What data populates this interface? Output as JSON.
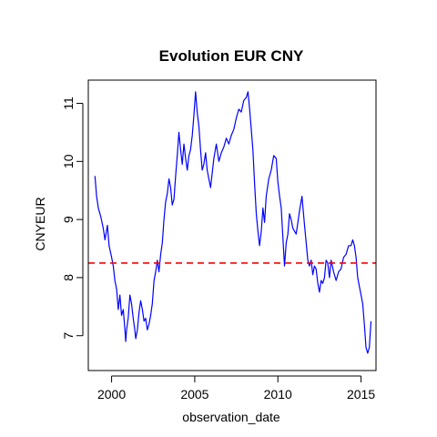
{
  "chart_data": {
    "type": "line",
    "title": "Evolution EUR CNY",
    "xlabel": "observation_date",
    "ylabel": "CNYEUR",
    "xlim": [
      1998.6,
      2015.9
    ],
    "ylim": [
      6.4,
      11.4
    ],
    "x_ticks": [
      2000,
      2005,
      2010,
      2015
    ],
    "y_ticks": [
      7,
      8,
      9,
      10,
      11
    ],
    "x_tick_labels": [
      "2000",
      "2005",
      "2010",
      "2015"
    ],
    "y_tick_labels": [
      "7",
      "8",
      "9",
      "10",
      "11"
    ],
    "grid": false,
    "legend": "none",
    "series": [
      {
        "color": "#0000ff",
        "x": [
          1999.0,
          1999.1,
          1999.2,
          1999.35,
          1999.5,
          1999.6,
          1999.75,
          1999.85,
          2000.0,
          2000.1,
          2000.2,
          2000.3,
          2000.4,
          2000.5,
          2000.6,
          2000.7,
          2000.8,
          2000.85,
          2000.9,
          2001.0,
          2001.1,
          2001.2,
          2001.3,
          2001.4,
          2001.45,
          2001.55,
          2001.65,
          2001.75,
          2001.85,
          2001.95,
          2002.05,
          2002.15,
          2002.25,
          2002.35,
          2002.45,
          2002.55,
          2002.65,
          2002.75,
          2002.85,
          2002.95,
          2003.05,
          2003.15,
          2003.25,
          2003.35,
          2003.45,
          2003.55,
          2003.65,
          2003.75,
          2003.85,
          2003.95,
          2004.05,
          2004.15,
          2004.25,
          2004.35,
          2004.45,
          2004.55,
          2004.65,
          2004.75,
          2004.85,
          2004.95,
          2005.05,
          2005.15,
          2005.25,
          2005.35,
          2005.45,
          2005.55,
          2005.65,
          2005.75,
          2005.85,
          2005.95,
          2006.05,
          2006.15,
          2006.3,
          2006.45,
          2006.6,
          2006.75,
          2006.9,
          2007.05,
          2007.2,
          2007.35,
          2007.5,
          2007.65,
          2007.8,
          2007.95,
          2008.1,
          2008.2,
          2008.3,
          2008.4,
          2008.5,
          2008.6,
          2008.7,
          2008.8,
          2008.9,
          2009.0,
          2009.1,
          2009.2,
          2009.3,
          2009.45,
          2009.6,
          2009.75,
          2009.9,
          2010.0,
          2010.1,
          2010.2,
          2010.3,
          2010.4,
          2010.5,
          2010.6,
          2010.7,
          2010.8,
          2010.9,
          2011.0,
          2011.1,
          2011.2,
          2011.3,
          2011.45,
          2011.6,
          2011.7,
          2011.8,
          2011.9,
          2012.0,
          2012.1,
          2012.2,
          2012.3,
          2012.4,
          2012.5,
          2012.6,
          2012.7,
          2012.8,
          2012.9,
          2013.0,
          2013.1,
          2013.2,
          2013.35,
          2013.5,
          2013.65,
          2013.8,
          2013.95,
          2014.1,
          2014.25,
          2014.4,
          2014.5,
          2014.6,
          2014.7,
          2014.8,
          2014.9,
          2015.0,
          2015.1,
          2015.2,
          2015.3,
          2015.4,
          2015.5,
          2015.6
        ],
        "y": [
          9.75,
          9.4,
          9.2,
          9.05,
          8.85,
          8.65,
          8.9,
          8.55,
          8.35,
          8.2,
          7.95,
          7.8,
          7.45,
          7.7,
          7.35,
          7.45,
          7.1,
          6.9,
          7.1,
          7.3,
          7.7,
          7.55,
          7.3,
          7.1,
          6.95,
          7.1,
          7.4,
          7.6,
          7.45,
          7.25,
          7.3,
          7.1,
          7.2,
          7.35,
          7.55,
          7.95,
          8.1,
          8.3,
          8.1,
          8.4,
          8.6,
          9.0,
          9.3,
          9.45,
          9.7,
          9.55,
          9.25,
          9.35,
          9.75,
          10.1,
          10.5,
          10.2,
          9.95,
          10.3,
          10.05,
          9.85,
          10.1,
          10.2,
          10.45,
          10.8,
          11.2,
          10.85,
          10.6,
          10.2,
          9.85,
          9.95,
          10.15,
          9.85,
          9.7,
          9.55,
          9.8,
          10.05,
          10.3,
          10.0,
          10.15,
          10.25,
          10.4,
          10.3,
          10.45,
          10.55,
          10.75,
          10.9,
          10.85,
          11.05,
          11.1,
          11.2,
          10.9,
          10.55,
          10.2,
          9.6,
          9.1,
          8.8,
          8.55,
          8.8,
          9.2,
          8.95,
          9.4,
          9.7,
          9.85,
          10.1,
          10.05,
          9.65,
          9.4,
          9.2,
          8.7,
          8.2,
          8.6,
          8.75,
          9.1,
          9.0,
          8.85,
          8.8,
          8.75,
          8.95,
          9.15,
          9.4,
          8.9,
          8.6,
          8.3,
          8.2,
          8.3,
          8.05,
          8.2,
          8.15,
          7.9,
          7.75,
          7.95,
          7.9,
          8.0,
          8.3,
          8.25,
          8.0,
          8.3,
          8.1,
          7.95,
          8.1,
          8.15,
          8.35,
          8.4,
          8.55,
          8.55,
          8.65,
          8.55,
          8.35,
          8.0,
          7.85,
          7.7,
          7.55,
          7.2,
          6.8,
          6.7,
          6.8,
          7.25
        ]
      }
    ],
    "reference_line": {
      "y": 8.25,
      "color": "#ff0000",
      "style": "dashed"
    }
  }
}
